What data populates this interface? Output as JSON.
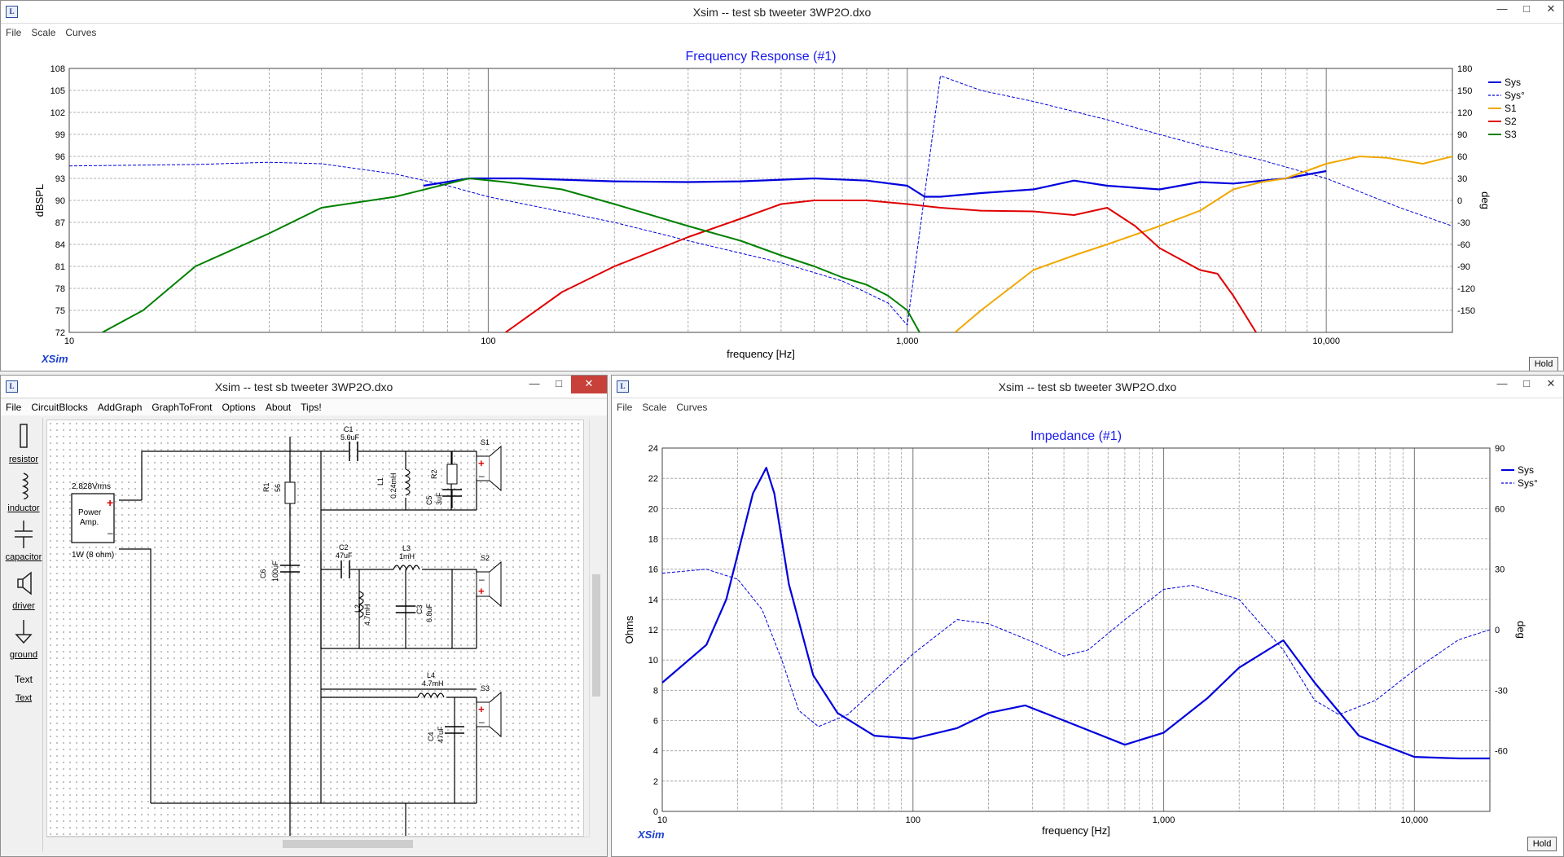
{
  "fr_window": {
    "title": "Xsim -- test sb tweeter 3WP2O.dxo",
    "menu": [
      "File",
      "Scale",
      "Curves"
    ],
    "graph_title": "Frequency Response (#1)",
    "ylabel_left": "dBSPL",
    "ylabel_right": "deg",
    "xlabel": "frequency [Hz]",
    "hold_label": "Hold",
    "logo": "XSim"
  },
  "imp_window": {
    "title": "Xsim -- test sb tweeter 3WP2O.dxo",
    "menu": [
      "File",
      "Scale",
      "Curves"
    ],
    "graph_title": "Impedance (#1)",
    "ylabel_left": "Ohms",
    "ylabel_right": "deg",
    "xlabel": "frequency [Hz]",
    "hold_label": "Hold",
    "logo": "XSim"
  },
  "circuit_window": {
    "title": "Xsim -- test sb tweeter 3WP2O.dxo",
    "menu": [
      "File",
      "CircuitBlocks",
      "AddGraph",
      "GraphToFront",
      "Options",
      "About",
      "Tips!"
    ],
    "tools": [
      "resistor",
      "inductor",
      "capacitor",
      "driver",
      "ground",
      "Text"
    ],
    "tool_text_preview": "Text",
    "components": {
      "amp_label1": "Power",
      "amp_label2": "Amp.",
      "amp_voltage": "2.828Vrms",
      "amp_power": "1W (8 ohm)",
      "r1": "R1",
      "r1_val": "56",
      "c6": "C6",
      "c6_val": "100uF",
      "c1": "C1",
      "c1_val": "5.6uF",
      "l1": "L1",
      "l1_val": "0.24mH",
      "r2": "R2",
      "c5": "C5",
      "c5_val": "3uF",
      "c2": "C2",
      "c2_val": "47uF",
      "l3": "L3",
      "l3_val": "1mH",
      "l2": "L2",
      "l2_val": "4.7mH",
      "c3": "C3",
      "c3_val": "6.8uF",
      "l4": "L4",
      "l4_val": "4.7mH",
      "c4": "C4",
      "c4_val": "47uF",
      "s1": "S1",
      "s2": "S2",
      "s3": "S3"
    }
  },
  "chart_data": [
    {
      "type": "line",
      "title": "Frequency Response (#1)",
      "xlabel": "frequency [Hz]",
      "ylabel": "dBSPL",
      "y2label": "deg",
      "xscale": "log",
      "xlim": [
        10,
        20000
      ],
      "ylim": [
        72,
        108
      ],
      "y2lim": [
        -180,
        180
      ],
      "xticks": [
        "10",
        "100",
        "1,000",
        "10,000"
      ],
      "yticks": [
        "72",
        "75",
        "78",
        "81",
        "84",
        "87",
        "90",
        "93",
        "96",
        "99",
        "102",
        "105",
        "108"
      ],
      "y2ticks": [
        "180",
        "150",
        "120",
        "90",
        "60",
        "30",
        "0",
        "-30",
        "-60",
        "-90",
        "-120",
        "-150"
      ],
      "grid": true,
      "legend": "right",
      "series": [
        {
          "name": "Sys",
          "color": "#0000dd",
          "axis": "left",
          "width": 2.2,
          "x": [
            70,
            90,
            120,
            200,
            300,
            400,
            600,
            800,
            1000,
            1100,
            1200,
            1500,
            2000,
            2500,
            3000,
            4000,
            5000,
            6000,
            8000,
            10000
          ],
          "y": [
            92,
            93,
            93,
            92.6,
            92.5,
            92.6,
            93,
            92.7,
            92,
            90.5,
            90.5,
            91,
            91.5,
            92.7,
            92,
            91.5,
            92.5,
            92.3,
            93,
            94
          ]
        },
        {
          "name": "Sys°",
          "color": "#0000dd",
          "axis": "right",
          "dashed": true,
          "width": 1,
          "x": [
            10,
            20,
            30,
            40,
            60,
            80,
            100,
            200,
            300,
            500,
            700,
            900,
            1000,
            1200,
            1500,
            2000,
            3000,
            4000,
            5000,
            7000,
            10000,
            15000,
            20000
          ],
          "y": [
            47,
            49,
            52,
            50,
            36,
            20,
            5,
            -30,
            -55,
            -85,
            -110,
            -140,
            -170,
            170,
            150,
            135,
            110,
            90,
            75,
            55,
            30,
            -10,
            -35
          ]
        },
        {
          "name": "S1",
          "color": "#f0a800",
          "axis": "left",
          "width": 2,
          "x": [
            1300,
            1500,
            2000,
            2500,
            3000,
            4000,
            5000,
            6000,
            7000,
            8000,
            10000,
            12000,
            14000,
            17000,
            20000
          ],
          "y": [
            72,
            75,
            80.5,
            82.5,
            84,
            86.5,
            88.6,
            91.5,
            92.5,
            93,
            95,
            96,
            95.8,
            95,
            96
          ]
        },
        {
          "name": "S2",
          "color": "#e00000",
          "axis": "left",
          "width": 2,
          "x": [
            110,
            150,
            200,
            300,
            400,
            500,
            600,
            800,
            1000,
            1200,
            1500,
            2000,
            2500,
            3000,
            3500,
            4000,
            5000,
            5500,
            6000,
            6800
          ],
          "y": [
            72,
            77.5,
            81,
            85,
            87.5,
            89.5,
            90,
            90,
            89.5,
            89,
            88.6,
            88.5,
            88,
            89,
            86.5,
            83.5,
            80.5,
            80,
            77,
            72
          ]
        },
        {
          "name": "S3",
          "color": "#008000",
          "axis": "left",
          "width": 2,
          "x": [
            12,
            15,
            20,
            30,
            40,
            60,
            90,
            110,
            150,
            200,
            300,
            400,
            500,
            600,
            700,
            800,
            900,
            1000,
            1070
          ],
          "y": [
            72,
            75,
            81,
            85.5,
            89,
            90.5,
            93,
            92.5,
            91.5,
            89.5,
            86.5,
            84.5,
            82.5,
            81,
            79.5,
            78.5,
            77,
            75,
            72
          ]
        }
      ]
    },
    {
      "type": "line",
      "title": "Impedance (#1)",
      "xlabel": "frequency [Hz]",
      "ylabel": "Ohms",
      "y2label": "deg",
      "xscale": "log",
      "xlim": [
        10,
        20000
      ],
      "ylim": [
        0,
        24
      ],
      "y2lim": [
        -90,
        90
      ],
      "xticks": [
        "10",
        "100",
        "1,000",
        "10,000"
      ],
      "yticks": [
        "0",
        "2",
        "4",
        "6",
        "8",
        "10",
        "12",
        "14",
        "16",
        "18",
        "20",
        "22",
        "24"
      ],
      "y2ticks": [
        "90",
        "60",
        "30",
        "0",
        "-30",
        "-60"
      ],
      "grid": true,
      "legend": "right",
      "series": [
        {
          "name": "Sys",
          "color": "#0000dd",
          "axis": "left",
          "width": 2.2,
          "x": [
            10,
            15,
            18,
            20,
            23,
            26,
            28,
            32,
            40,
            50,
            70,
            100,
            150,
            200,
            280,
            400,
            700,
            1000,
            1500,
            2000,
            3000,
            4000,
            6000,
            10000,
            15000,
            20000
          ],
          "y": [
            8.5,
            11,
            14,
            17,
            21,
            22.7,
            21,
            15,
            9,
            6.5,
            5,
            4.8,
            5.5,
            6.5,
            7,
            6,
            4.4,
            5.2,
            7.5,
            9.5,
            11.3,
            8.5,
            5,
            3.6,
            3.5,
            3.5
          ]
        },
        {
          "name": "Sys°",
          "color": "#0000dd",
          "axis": "right",
          "dashed": true,
          "width": 1,
          "x": [
            10,
            15,
            20,
            25,
            30,
            35,
            42,
            55,
            70,
            100,
            150,
            200,
            300,
            400,
            500,
            700,
            1000,
            1300,
            2000,
            3000,
            4000,
            5000,
            7000,
            10000,
            15000,
            20000
          ],
          "y": [
            28,
            30,
            25,
            10,
            -15,
            -40,
            -48,
            -42,
            -30,
            -12,
            5,
            3,
            -6,
            -13,
            -10,
            5,
            20,
            22,
            15,
            -10,
            -35,
            -42,
            -35,
            -20,
            -5,
            0
          ]
        }
      ]
    }
  ]
}
